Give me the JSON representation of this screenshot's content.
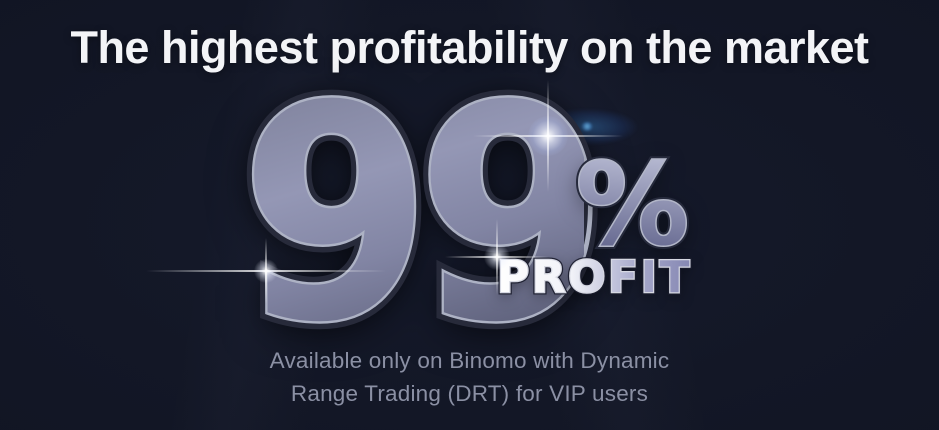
{
  "header": {
    "title": "The highest profitability on the market"
  },
  "hero": {
    "big_number": "99",
    "percent_symbol": "%",
    "profit_label": "PROFIT"
  },
  "subtitle": {
    "line1": "Available only on Binomo with Dynamic",
    "line2": "Range Trading (DRT) for VIP users"
  },
  "colors": {
    "background": "#131726",
    "headline_text": "#f3f4f7",
    "subtitle_text": "#8b90a4",
    "numeral_fill_light": "#9497b5",
    "numeral_fill_dark": "#4e5169",
    "numeral_outline": "#272a3a",
    "numeral_rim": "#c6cadd",
    "percent_fill_top": "#b9bcd4",
    "percent_fill_bottom": "#5d6089",
    "profit_fill_left": "#ffffff",
    "profit_fill_right": "#8486b2",
    "sparkle": "#ffffff",
    "blue_glow": "#4096e4"
  }
}
